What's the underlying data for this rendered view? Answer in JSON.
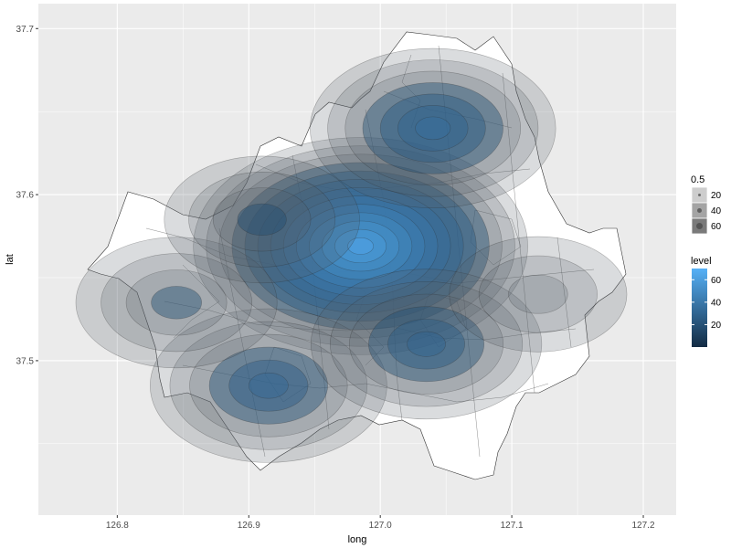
{
  "chart_data": {
    "type": "density-contour-map",
    "title": "",
    "xlabel": "long",
    "ylabel": "lat",
    "xlim": [
      126.74,
      127.225
    ],
    "ylim": [
      37.407,
      37.715
    ],
    "x_ticks": [
      {
        "value": 126.8,
        "label": "126.8"
      },
      {
        "value": 126.9,
        "label": "126.9"
      },
      {
        "value": 127.0,
        "label": "127.0"
      },
      {
        "value": 127.1,
        "label": "127.1"
      },
      {
        "value": 127.2,
        "label": "127.2"
      }
    ],
    "y_ticks": [
      {
        "value": 37.5,
        "label": "37.5"
      },
      {
        "value": 37.6,
        "label": "37.6"
      },
      {
        "value": 37.7,
        "label": "37.7"
      }
    ],
    "grid": true,
    "panel_background": "#ebebeb",
    "grid_color": "#ffffff",
    "density_peaks": [
      {
        "long": 126.985,
        "lat": 37.569,
        "level": 65
      },
      {
        "long": 127.04,
        "lat": 37.64,
        "level": 35
      },
      {
        "long": 126.915,
        "lat": 37.485,
        "level": 32
      },
      {
        "long": 127.035,
        "lat": 37.51,
        "level": 30
      },
      {
        "long": 126.845,
        "lat": 37.535,
        "level": 20
      },
      {
        "long": 126.91,
        "lat": 37.585,
        "level": 18
      },
      {
        "long": 127.12,
        "lat": 37.54,
        "level": 12
      }
    ],
    "legend_size": {
      "title": "0.5",
      "entries": [
        {
          "label": "20",
          "value": 20
        },
        {
          "label": "40",
          "value": 40
        },
        {
          "label": "60",
          "value": 60
        }
      ]
    },
    "legend_level": {
      "title": "level",
      "range": [
        0,
        70
      ],
      "breaks": [
        {
          "label": "20",
          "value": 20
        },
        {
          "label": "40",
          "value": 40
        },
        {
          "label": "60",
          "value": 60
        }
      ],
      "color_low": "#132b43",
      "color_high": "#56b1f7"
    },
    "legend_position": "right"
  }
}
